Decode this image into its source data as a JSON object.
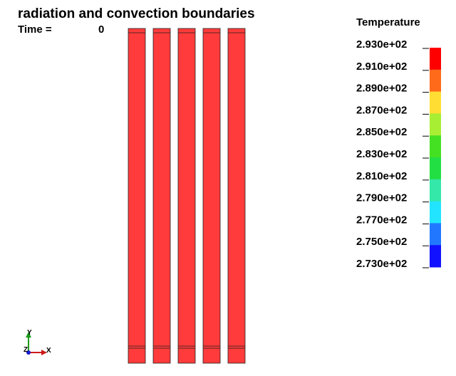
{
  "header": {
    "title": "radiation and convection boundaries",
    "time_label": "Time =",
    "time_value": "0"
  },
  "legend": {
    "title": "Temperature",
    "labels": [
      "2.930e+02",
      "2.910e+02",
      "2.890e+02",
      "2.870e+02",
      "2.850e+02",
      "2.830e+02",
      "2.810e+02",
      "2.790e+02",
      "2.770e+02",
      "2.750e+02",
      "2.730e+02"
    ],
    "colors": [
      "#ff0000",
      "#ff6a1a",
      "#ffdd33",
      "#a8ee33",
      "#44e022",
      "#22e044",
      "#33e8a8",
      "#22e4ff",
      "#2277ff",
      "#1111ff"
    ]
  },
  "axes": {
    "x": "X",
    "y": "Y",
    "z": "Z"
  }
}
